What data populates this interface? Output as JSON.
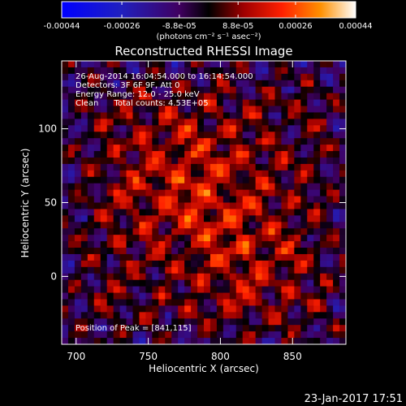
{
  "chart_data": {
    "type": "heatmap",
    "title": "Reconstructed RHESSI Image",
    "xlabel": "Heliocentric X (arcsec)",
    "ylabel": "Heliocentric Y (arcsec)",
    "xlim": [
      690,
      887
    ],
    "ylim": [
      -46,
      146
    ],
    "x_ticks": [
      700,
      750,
      800,
      850
    ],
    "y_ticks": [
      0,
      50,
      100
    ],
    "colorbar": {
      "range": [
        -0.00044,
        0.00044
      ],
      "ticks": [
        -0.00044,
        -0.00026,
        -8.8e-05,
        8.8e-05,
        0.00026,
        0.00044
      ],
      "tick_labels": [
        "-0.00044",
        "-0.00026",
        "-8.8e-05",
        "8.8e-05",
        "0.00026",
        "0.00044"
      ],
      "unit_label": "(photons cm⁻² s⁻¹ asec⁻²)",
      "colors": [
        "#0000ff",
        "#2020c0",
        "#400060",
        "#000000",
        "#a00000",
        "#ff2000",
        "#ff9000",
        "#ffffff"
      ]
    },
    "annotations": [
      "26-Aug-2014 16:04:54.000 to 16:14:54.000",
      "Detectors: 3F 6F 9F, Att 0",
      "Energy Range: 12.0 - 25.0 keV",
      "Clean      Total counts: 4.53E+05"
    ],
    "peak_label": "Position of Peak = [841,115]",
    "peak": {
      "x": 841,
      "y": 115
    },
    "footer": "23-Jan-2017 17:51"
  }
}
